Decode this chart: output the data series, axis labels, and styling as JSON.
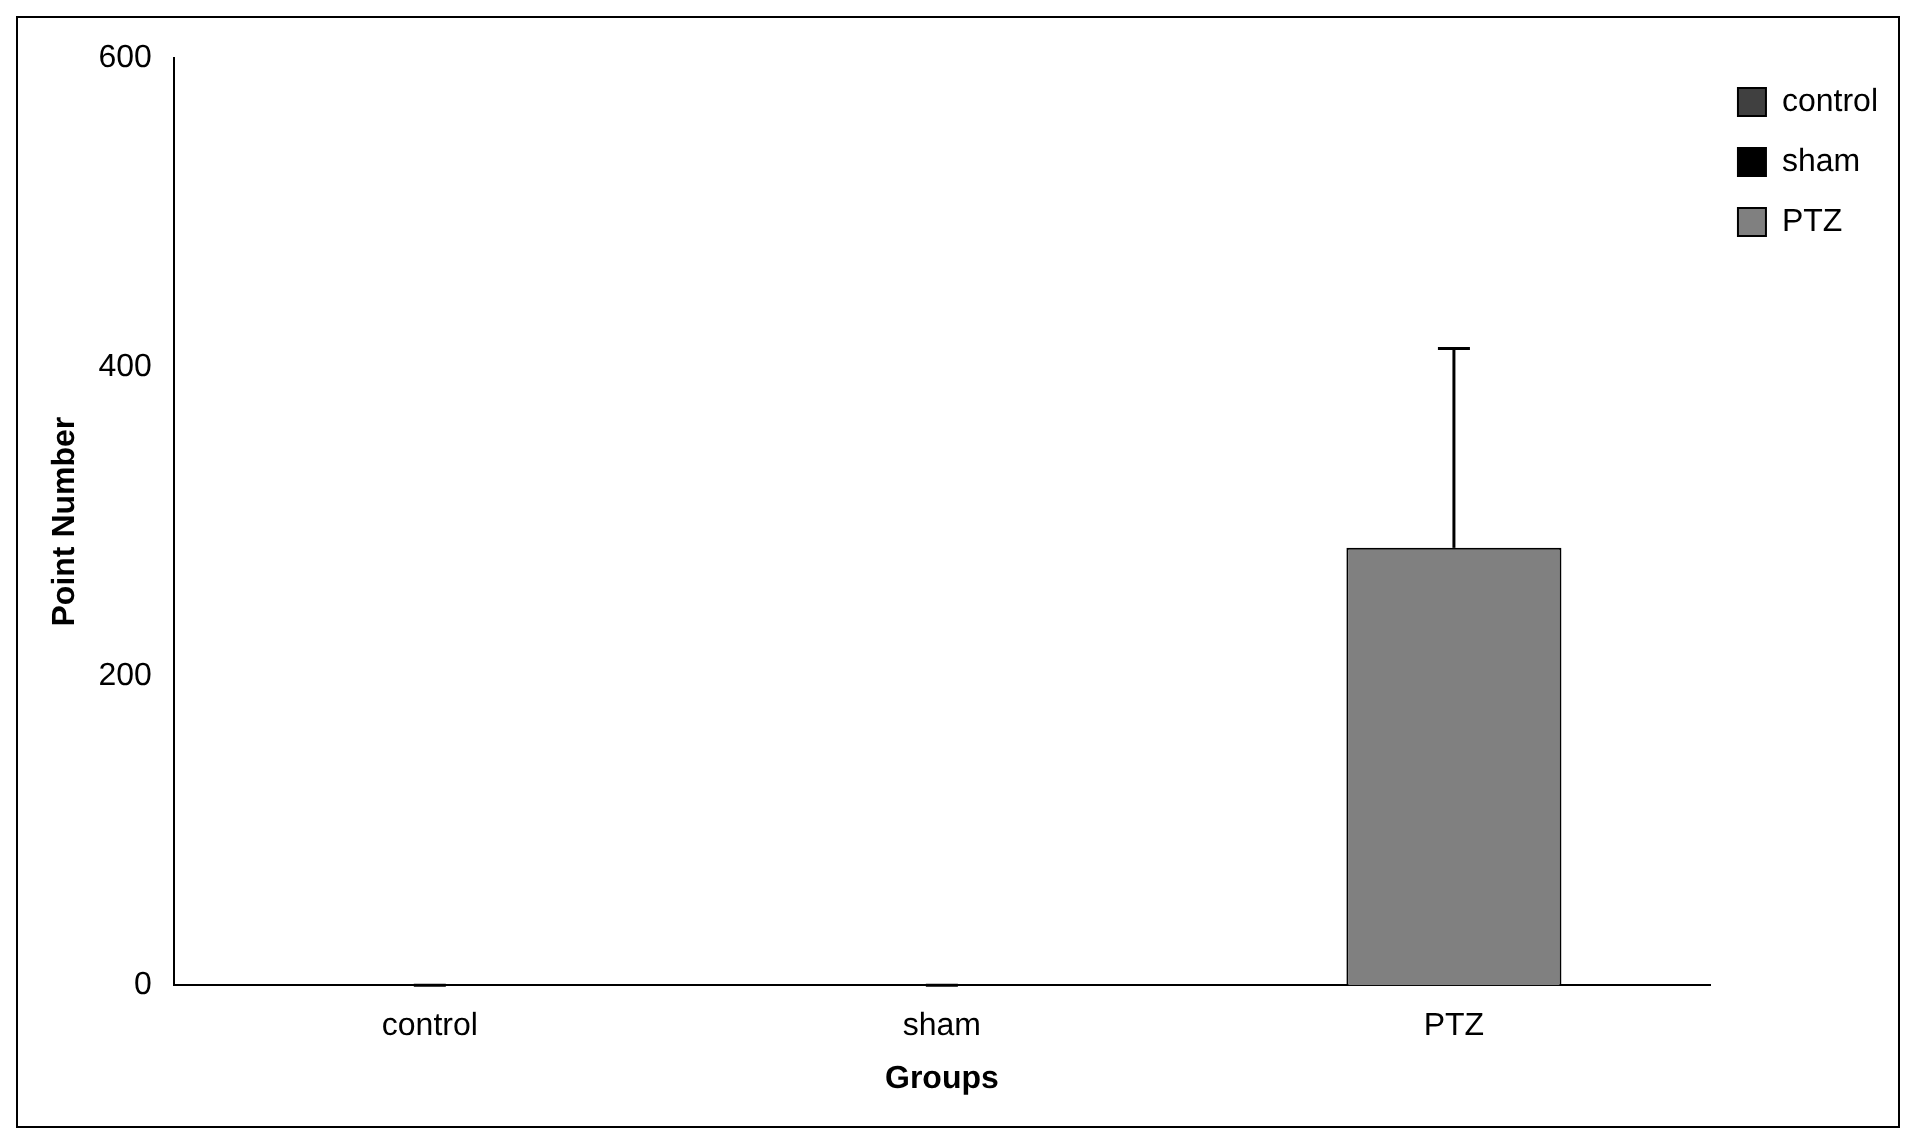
{
  "chart_data": {
    "type": "bar",
    "xlabel": "Groups",
    "ylabel": "Point Number",
    "categories": [
      "control",
      "sham",
      "PTZ"
    ],
    "series": [
      {
        "name": "control",
        "color": "#404040",
        "values": [
          0,
          null,
          null
        ],
        "errors": [
          [
            0,
            0
          ],
          null,
          null
        ]
      },
      {
        "name": "sham",
        "color": "#000000",
        "values": [
          null,
          0,
          null
        ],
        "errors": [
          null,
          [
            0,
            0
          ],
          null
        ]
      },
      {
        "name": "PTZ",
        "color": "#808080",
        "values": [
          null,
          null,
          283
        ],
        "errors": [
          null,
          null,
          [
            283,
            412
          ]
        ]
      }
    ],
    "ylim": [
      0,
      600
    ],
    "yticks": [
      0,
      200,
      400,
      600
    ],
    "grid": false,
    "legend": "top right"
  }
}
